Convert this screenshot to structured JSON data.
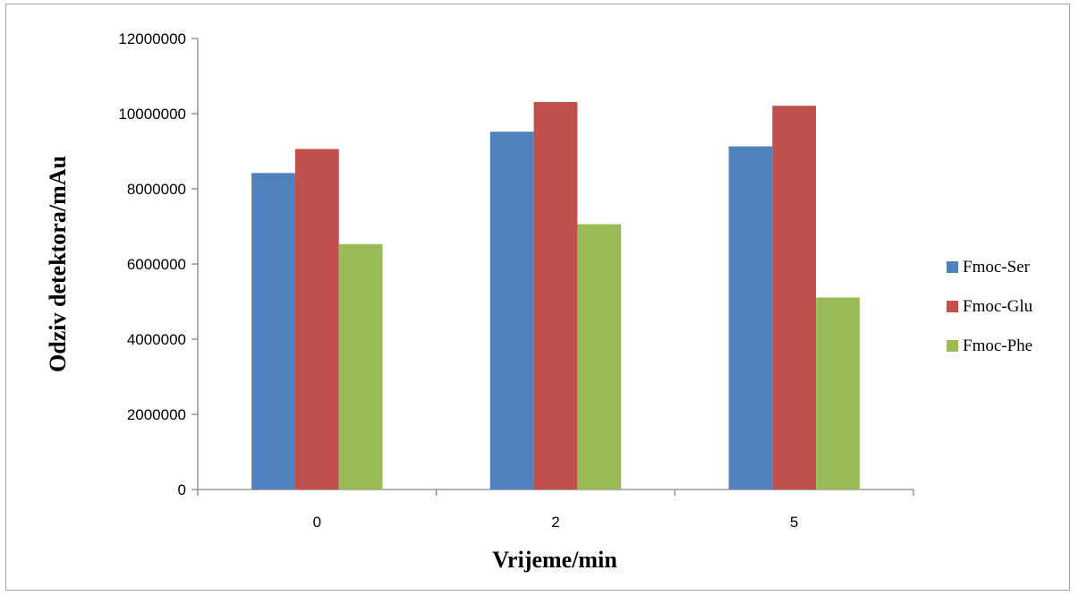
{
  "chart_data": {
    "type": "bar",
    "title": "",
    "xlabel": "Vrijeme/min",
    "ylabel": "Odziv detektora/mAu",
    "categories": [
      "0",
      "2",
      "5"
    ],
    "series": [
      {
        "name": "Fmoc-Ser",
        "color": "#4f81bd",
        "values": [
          8420000,
          9520000,
          9130000
        ]
      },
      {
        "name": "Fmoc-Glu",
        "color": "#c0504d",
        "values": [
          9060000,
          10310000,
          10210000
        ]
      },
      {
        "name": "Fmoc-Phe",
        "color": "#9bbb59",
        "values": [
          6530000,
          7060000,
          5110000
        ]
      }
    ],
    "ylim": [
      0,
      12000000
    ],
    "yticks": [
      "0",
      "2000000",
      "4000000",
      "6000000",
      "8000000",
      "10000000",
      "12000000"
    ],
    "grid": false,
    "legend_position": "right"
  }
}
